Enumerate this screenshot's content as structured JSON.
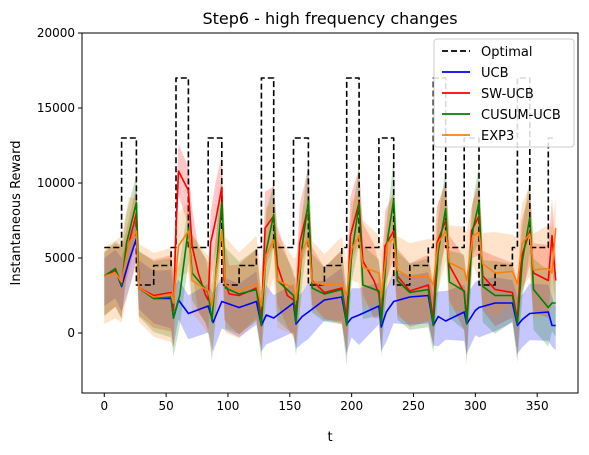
{
  "chart_data": {
    "type": "line",
    "title": "Step6 - high frequency changes",
    "xlabel": "t",
    "ylabel": "Instantaneous Reward",
    "xlim": [
      -18,
      383
    ],
    "ylim": [
      -4000,
      20000
    ],
    "xticks": [
      0,
      50,
      100,
      150,
      200,
      250,
      300,
      350
    ],
    "yticks": [
      0,
      5000,
      10000,
      15000,
      20000
    ],
    "legend_position": "upper right",
    "grid": false,
    "series": [
      {
        "name": "Optimal",
        "color": "#000000",
        "style": "dashed",
        "points": [
          [
            0,
            5700
          ],
          [
            14,
            5700
          ],
          [
            14,
            13000
          ],
          [
            26,
            13000
          ],
          [
            26,
            3200
          ],
          [
            40,
            3200
          ],
          [
            40,
            4500
          ],
          [
            54,
            4500
          ],
          [
            54,
            5700
          ],
          [
            58,
            5700
          ],
          [
            58,
            17000
          ],
          [
            68,
            17000
          ],
          [
            68,
            5700
          ],
          [
            84,
            5700
          ],
          [
            84,
            13000
          ],
          [
            95,
            13000
          ],
          [
            95,
            3200
          ],
          [
            109,
            3200
          ],
          [
            109,
            4500
          ],
          [
            123,
            4500
          ],
          [
            123,
            5700
          ],
          [
            127,
            5700
          ],
          [
            127,
            17000
          ],
          [
            137,
            17000
          ],
          [
            137,
            5700
          ],
          [
            153,
            5700
          ],
          [
            153,
            13000
          ],
          [
            165,
            13000
          ],
          [
            165,
            3200
          ],
          [
            178,
            3200
          ],
          [
            178,
            4500
          ],
          [
            192,
            4500
          ],
          [
            192,
            5700
          ],
          [
            196,
            5700
          ],
          [
            196,
            17000
          ],
          [
            206,
            17000
          ],
          [
            206,
            5700
          ],
          [
            222,
            5700
          ],
          [
            222,
            13000
          ],
          [
            234,
            13000
          ],
          [
            234,
            3200
          ],
          [
            247,
            3200
          ],
          [
            247,
            4500
          ],
          [
            262,
            4500
          ],
          [
            262,
            5700
          ],
          [
            266,
            5700
          ],
          [
            266,
            17000
          ],
          [
            276,
            17000
          ],
          [
            276,
            5700
          ],
          [
            291,
            5700
          ],
          [
            291,
            13000
          ],
          [
            303,
            13000
          ],
          [
            303,
            3200
          ],
          [
            316,
            3200
          ],
          [
            316,
            4500
          ],
          [
            330,
            4500
          ],
          [
            330,
            5700
          ],
          [
            334,
            5700
          ],
          [
            334,
            17000
          ],
          [
            344,
            17000
          ],
          [
            344,
            5700
          ],
          [
            359,
            5700
          ],
          [
            359,
            13000
          ],
          [
            365,
            13000
          ]
        ]
      },
      {
        "name": "UCB",
        "color": "#0000ff",
        "style": "solid",
        "spread": 2000,
        "points": [
          [
            0,
            3800
          ],
          [
            9,
            4200
          ],
          [
            14,
            3100
          ],
          [
            20,
            4800
          ],
          [
            26,
            6300
          ],
          [
            28,
            3000
          ],
          [
            40,
            2300
          ],
          [
            54,
            2300
          ],
          [
            56,
            1000
          ],
          [
            60,
            2200
          ],
          [
            68,
            1300
          ],
          [
            84,
            1800
          ],
          [
            88,
            700
          ],
          [
            95,
            2100
          ],
          [
            109,
            1700
          ],
          [
            123,
            2100
          ],
          [
            127,
            500
          ],
          [
            131,
            1200
          ],
          [
            137,
            1000
          ],
          [
            153,
            2000
          ],
          [
            155,
            600
          ],
          [
            160,
            1100
          ],
          [
            165,
            1400
          ],
          [
            178,
            2200
          ],
          [
            192,
            2400
          ],
          [
            196,
            600
          ],
          [
            200,
            1000
          ],
          [
            206,
            1200
          ],
          [
            222,
            1800
          ],
          [
            224,
            400
          ],
          [
            228,
            1400
          ],
          [
            234,
            2100
          ],
          [
            247,
            2400
          ],
          [
            262,
            2500
          ],
          [
            266,
            500
          ],
          [
            270,
            1100
          ],
          [
            276,
            800
          ],
          [
            291,
            1400
          ],
          [
            293,
            600
          ],
          [
            300,
            1500
          ],
          [
            303,
            1700
          ],
          [
            316,
            2000
          ],
          [
            330,
            2000
          ],
          [
            334,
            500
          ],
          [
            338,
            900
          ],
          [
            344,
            1300
          ],
          [
            359,
            1400
          ],
          [
            362,
            500
          ],
          [
            365,
            500
          ]
        ]
      },
      {
        "name": "SW-UCB",
        "color": "#ff0000",
        "style": "solid",
        "spread": 2600,
        "points": [
          [
            0,
            3800
          ],
          [
            9,
            4200
          ],
          [
            14,
            3200
          ],
          [
            17,
            5000
          ],
          [
            26,
            8000
          ],
          [
            28,
            3000
          ],
          [
            40,
            2500
          ],
          [
            54,
            2700
          ],
          [
            56,
            1500
          ],
          [
            58,
            7000
          ],
          [
            60,
            10800
          ],
          [
            68,
            9500
          ],
          [
            71,
            5800
          ],
          [
            76,
            4000
          ],
          [
            82,
            2500
          ],
          [
            84,
            2200
          ],
          [
            86,
            6000
          ],
          [
            90,
            7500
          ],
          [
            95,
            9700
          ],
          [
            97,
            3500
          ],
          [
            101,
            2600
          ],
          [
            109,
            2500
          ],
          [
            123,
            3000
          ],
          [
            127,
            1000
          ],
          [
            130,
            7000
          ],
          [
            137,
            7800
          ],
          [
            140,
            4500
          ],
          [
            148,
            2500
          ],
          [
            153,
            2200
          ],
          [
            155,
            1300
          ],
          [
            158,
            6000
          ],
          [
            165,
            8500
          ],
          [
            168,
            3500
          ],
          [
            178,
            2700
          ],
          [
            192,
            3000
          ],
          [
            196,
            1000
          ],
          [
            199,
            6500
          ],
          [
            206,
            8700
          ],
          [
            209,
            4800
          ],
          [
            218,
            3500
          ],
          [
            222,
            2600
          ],
          [
            224,
            900
          ],
          [
            227,
            5800
          ],
          [
            234,
            6800
          ],
          [
            237,
            3800
          ],
          [
            247,
            2800
          ],
          [
            262,
            3200
          ],
          [
            266,
            900
          ],
          [
            269,
            6000
          ],
          [
            276,
            7500
          ],
          [
            279,
            4500
          ],
          [
            291,
            2700
          ],
          [
            293,
            900
          ],
          [
            297,
            6800
          ],
          [
            303,
            7800
          ],
          [
            306,
            3800
          ],
          [
            316,
            2900
          ],
          [
            330,
            2700
          ],
          [
            334,
            900
          ],
          [
            337,
            5000
          ],
          [
            344,
            6800
          ],
          [
            347,
            4000
          ],
          [
            359,
            3500
          ],
          [
            362,
            6500
          ],
          [
            365,
            3500
          ]
        ]
      },
      {
        "name": "CUSUM-UCB",
        "color": "#008000",
        "style": "solid",
        "spread": 2700,
        "points": [
          [
            0,
            3800
          ],
          [
            9,
            4300
          ],
          [
            14,
            3200
          ],
          [
            18,
            6000
          ],
          [
            26,
            8700
          ],
          [
            28,
            3000
          ],
          [
            40,
            2300
          ],
          [
            54,
            2400
          ],
          [
            56,
            1000
          ],
          [
            61,
            2500
          ],
          [
            68,
            7000
          ],
          [
            71,
            4000
          ],
          [
            84,
            2700
          ],
          [
            87,
            800
          ],
          [
            95,
            8700
          ],
          [
            98,
            3000
          ],
          [
            109,
            2600
          ],
          [
            123,
            2900
          ],
          [
            127,
            500
          ],
          [
            131,
            5500
          ],
          [
            137,
            7900
          ],
          [
            140,
            3500
          ],
          [
            153,
            2500
          ],
          [
            155,
            700
          ],
          [
            160,
            5800
          ],
          [
            165,
            8800
          ],
          [
            168,
            3000
          ],
          [
            178,
            2600
          ],
          [
            192,
            2900
          ],
          [
            196,
            500
          ],
          [
            200,
            5200
          ],
          [
            206,
            8600
          ],
          [
            209,
            3200
          ],
          [
            222,
            2800
          ],
          [
            224,
            600
          ],
          [
            229,
            6200
          ],
          [
            234,
            8900
          ],
          [
            237,
            3500
          ],
          [
            247,
            2700
          ],
          [
            262,
            2900
          ],
          [
            266,
            500
          ],
          [
            270,
            5400
          ],
          [
            276,
            8300
          ],
          [
            279,
            3400
          ],
          [
            291,
            2800
          ],
          [
            293,
            600
          ],
          [
            298,
            6900
          ],
          [
            303,
            8700
          ],
          [
            306,
            3100
          ],
          [
            316,
            2500
          ],
          [
            330,
            2500
          ],
          [
            334,
            600
          ],
          [
            338,
            4800
          ],
          [
            344,
            7700
          ],
          [
            347,
            2900
          ],
          [
            359,
            1700
          ],
          [
            362,
            2000
          ],
          [
            365,
            2000
          ]
        ]
      },
      {
        "name": "EXP3",
        "color": "#ff7f0e",
        "style": "solid",
        "spread": 3200,
        "points": [
          [
            0,
            3800
          ],
          [
            9,
            4000
          ],
          [
            14,
            3400
          ],
          [
            20,
            6000
          ],
          [
            26,
            6800
          ],
          [
            28,
            3000
          ],
          [
            40,
            2400
          ],
          [
            54,
            2600
          ],
          [
            56,
            2000
          ],
          [
            60,
            5800
          ],
          [
            68,
            6800
          ],
          [
            71,
            3500
          ],
          [
            84,
            2800
          ],
          [
            87,
            1800
          ],
          [
            95,
            6800
          ],
          [
            98,
            3200
          ],
          [
            109,
            2800
          ],
          [
            123,
            3300
          ],
          [
            127,
            1800
          ],
          [
            131,
            5200
          ],
          [
            137,
            6200
          ],
          [
            140,
            3500
          ],
          [
            153,
            3000
          ],
          [
            155,
            2200
          ],
          [
            160,
            5500
          ],
          [
            165,
            6300
          ],
          [
            168,
            3400
          ],
          [
            178,
            3200
          ],
          [
            192,
            3300
          ],
          [
            196,
            2500
          ],
          [
            200,
            5600
          ],
          [
            206,
            6500
          ],
          [
            209,
            4400
          ],
          [
            222,
            4000
          ],
          [
            224,
            2400
          ],
          [
            229,
            6000
          ],
          [
            234,
            6300
          ],
          [
            237,
            4200
          ],
          [
            247,
            3700
          ],
          [
            262,
            3800
          ],
          [
            266,
            3200
          ],
          [
            270,
            6000
          ],
          [
            276,
            6800
          ],
          [
            279,
            4700
          ],
          [
            291,
            4200
          ],
          [
            293,
            3500
          ],
          [
            298,
            6500
          ],
          [
            303,
            6700
          ],
          [
            306,
            4600
          ],
          [
            316,
            4000
          ],
          [
            330,
            4100
          ],
          [
            334,
            3300
          ],
          [
            338,
            6000
          ],
          [
            344,
            6600
          ],
          [
            347,
            4200
          ],
          [
            359,
            4300
          ],
          [
            362,
            4000
          ],
          [
            365,
            7000
          ]
        ]
      }
    ]
  }
}
